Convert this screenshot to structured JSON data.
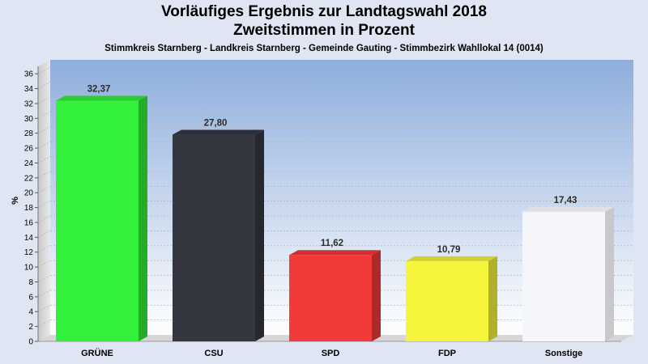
{
  "header": {
    "title_line1": "Vorläufiges Ergebnis zur Landtagswahl 2018",
    "title_line2": "Zweitstimmen in Prozent",
    "subtitle": "Stimmkreis Starnberg - Landkreis Starnberg - Gemeinde Gauting - Stimmbezirk Wahllokal 14 (0014)"
  },
  "chart_data": {
    "type": "bar",
    "title": "Vorläufiges Ergebnis zur Landtagswahl 2018 Zweitstimmen in Prozent",
    "subtitle": "Stimmkreis Starnberg - Landkreis Starnberg - Gemeinde Gauting - Stimmbezirk Wahllokal 14 (0014)",
    "xlabel": "",
    "ylabel": "%",
    "ylim": [
      0,
      37
    ],
    "yticks": [
      0,
      2,
      4,
      6,
      8,
      10,
      12,
      14,
      16,
      18,
      20,
      22,
      24,
      26,
      28,
      30,
      32,
      34,
      36
    ],
    "categories": [
      "GRÜNE",
      "CSU",
      "SPD",
      "FDP",
      "Sonstige"
    ],
    "values": [
      32.37,
      27.8,
      11.62,
      10.79,
      17.43
    ],
    "value_labels": [
      "32,37",
      "27,80",
      "11,62",
      "10,79",
      "17,43"
    ],
    "colors": [
      "#33f03a",
      "#353740",
      "#f23a3a",
      "#f5f53b",
      "#f5f6fa"
    ],
    "grid": true,
    "legend": "none"
  }
}
